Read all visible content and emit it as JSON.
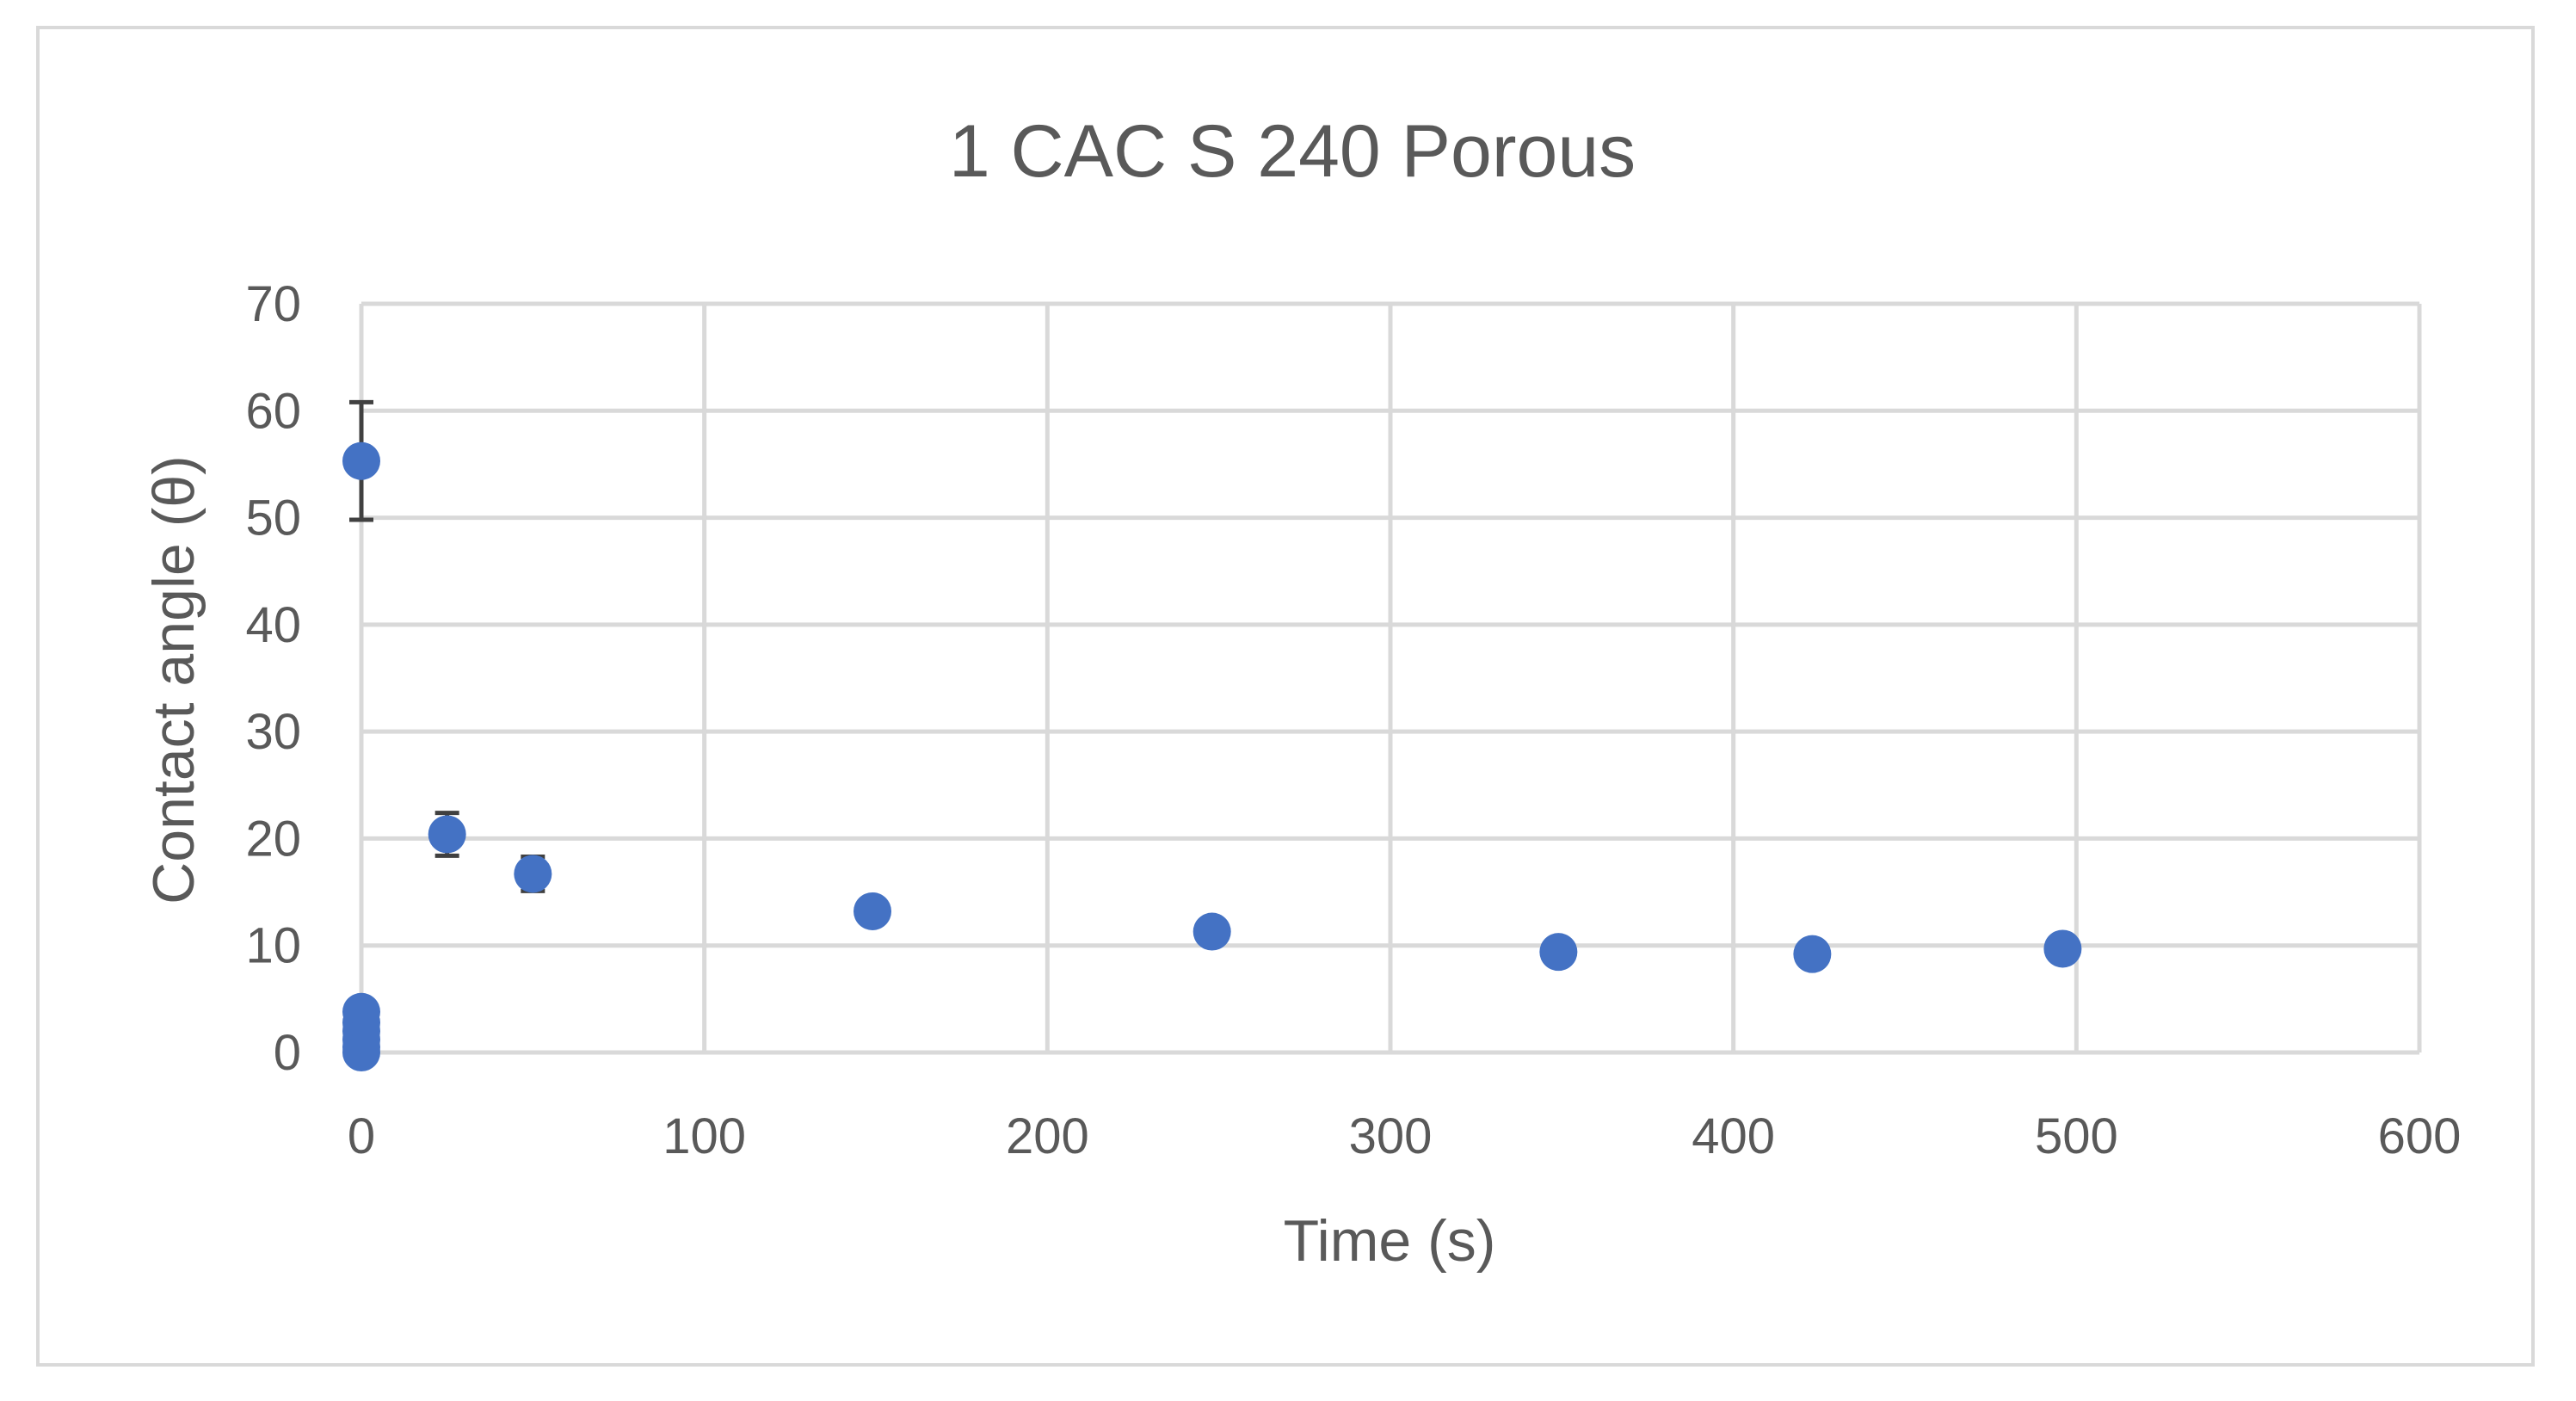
{
  "chart_data": {
    "type": "scatter",
    "title": "1 CAC S 240 Porous",
    "xlabel": "Time (s)",
    "ylabel": "Contact angle (θ)",
    "xlim": [
      0,
      600
    ],
    "ylim": [
      0,
      70
    ],
    "xticks": [
      0,
      100,
      200,
      300,
      400,
      500,
      600
    ],
    "yticks": [
      0,
      10,
      20,
      30,
      40,
      50,
      60,
      70
    ],
    "grid": true,
    "legend": "none",
    "marker_color": "#4472c4",
    "errorbar_color": "#404040",
    "series": [
      {
        "points": [
          {
            "x": 0,
            "y": 55.3,
            "err": 5.5
          },
          {
            "x": 0,
            "y": 3.8,
            "err": 0
          },
          {
            "x": 0,
            "y": 2.8,
            "err": 0
          },
          {
            "x": 0,
            "y": 2.0,
            "err": 0
          },
          {
            "x": 0,
            "y": 1.2,
            "err": 0
          },
          {
            "x": 0,
            "y": 0.5,
            "err": 0
          },
          {
            "x": 0,
            "y": 0,
            "err": 0
          },
          {
            "x": 25,
            "y": 20.4,
            "err": 2.0
          },
          {
            "x": 50,
            "y": 16.7,
            "err": 1.6
          },
          {
            "x": 149,
            "y": 13.2,
            "err": 1.0
          },
          {
            "x": 248,
            "y": 11.3,
            "err": 0.8
          },
          {
            "x": 349,
            "y": 9.4,
            "err": 0.5
          },
          {
            "x": 423,
            "y": 9.2,
            "err": 0.5
          },
          {
            "x": 496,
            "y": 9.7,
            "err": 0.4
          }
        ]
      }
    ]
  }
}
